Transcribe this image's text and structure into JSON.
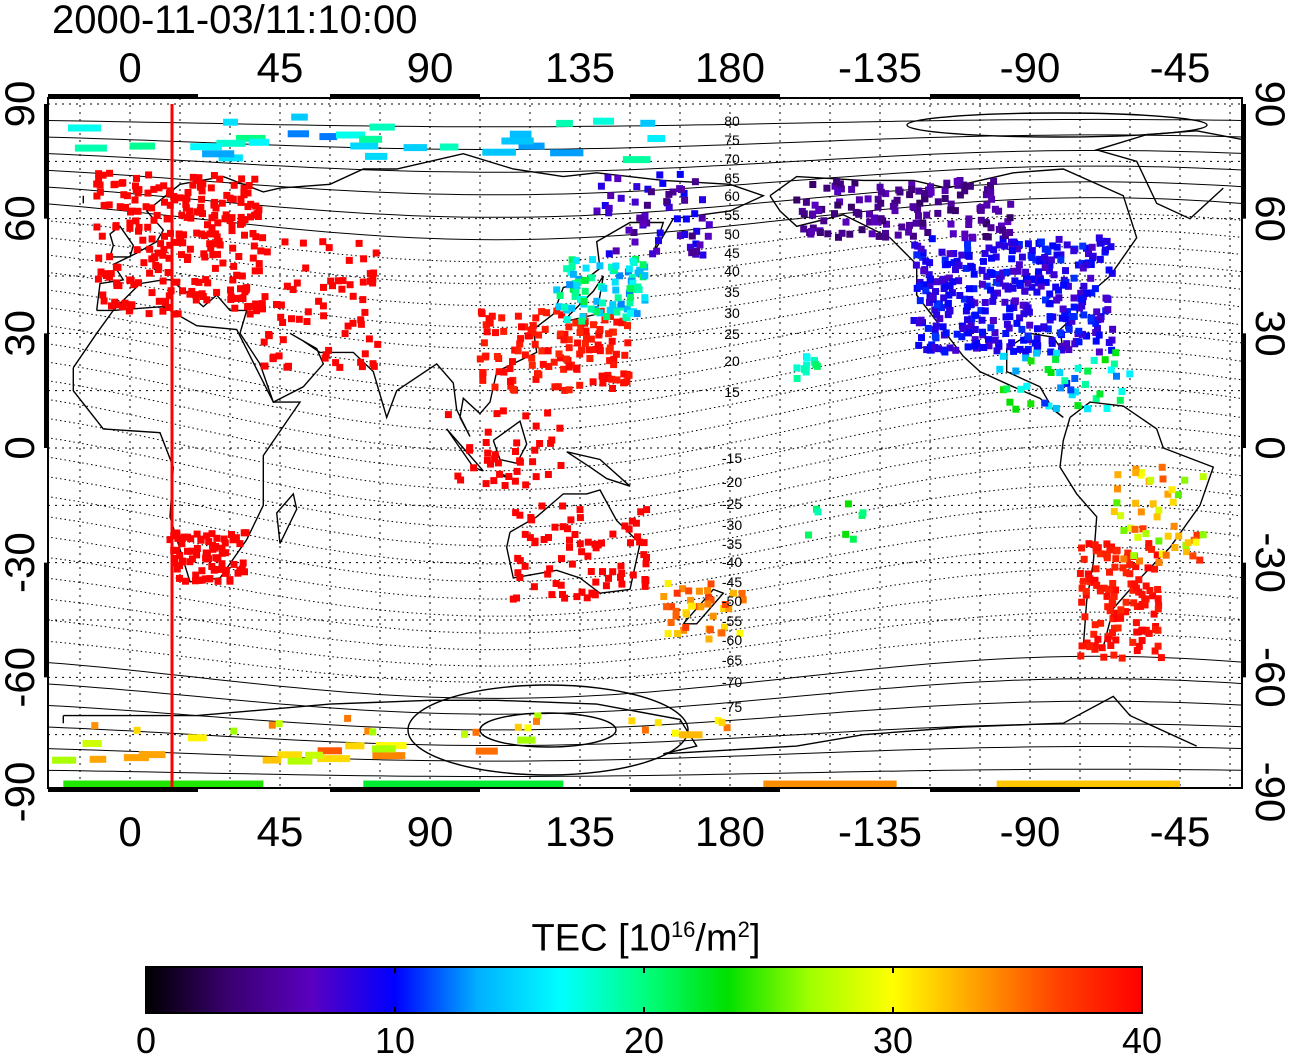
{
  "title": "2000-11-03/11:10:00",
  "map": {
    "x_ticks": [
      "0",
      "45",
      "90",
      "135",
      "180",
      "-135",
      "-90",
      "-45"
    ],
    "y_ticks": [
      "90",
      "60",
      "30",
      "0",
      "-30",
      "-60",
      "-90"
    ],
    "contour_labels": [
      "80",
      "75",
      "70",
      "65",
      "60",
      "55",
      "50",
      "45",
      "40",
      "35",
      "30",
      "25",
      "20",
      "15",
      "-15",
      "-20",
      "-25",
      "-30",
      "-35",
      "-40",
      "-45",
      "-50",
      "-55",
      "-60",
      "-65",
      "-70",
      "-75"
    ],
    "meridian_line_color": "#ff0000",
    "tec_regions": [
      {
        "name": "europe",
        "level": 40
      },
      {
        "name": "japan",
        "level": 15
      },
      {
        "name": "north_america",
        "level": 8
      },
      {
        "name": "south_america",
        "level": 40
      },
      {
        "name": "australia",
        "level": 40
      },
      {
        "name": "new_zealand",
        "level": 36
      },
      {
        "name": "antarctica",
        "level": 28
      }
    ]
  },
  "colorbar": {
    "label_main": "TEC  [10",
    "label_exp1": "16",
    "label_mid": "/m",
    "label_exp2": "2",
    "label_end": "]",
    "ticks": [
      "0",
      "10",
      "20",
      "30",
      "40"
    ],
    "colors": [
      "#000000",
      "#3a0070",
      "#5a00c0",
      "#0000ff",
      "#00b0ff",
      "#00ffff",
      "#00ff80",
      "#00e000",
      "#a0ff00",
      "#ffff00",
      "#ffa000",
      "#ff4000",
      "#ff0000"
    ]
  }
}
